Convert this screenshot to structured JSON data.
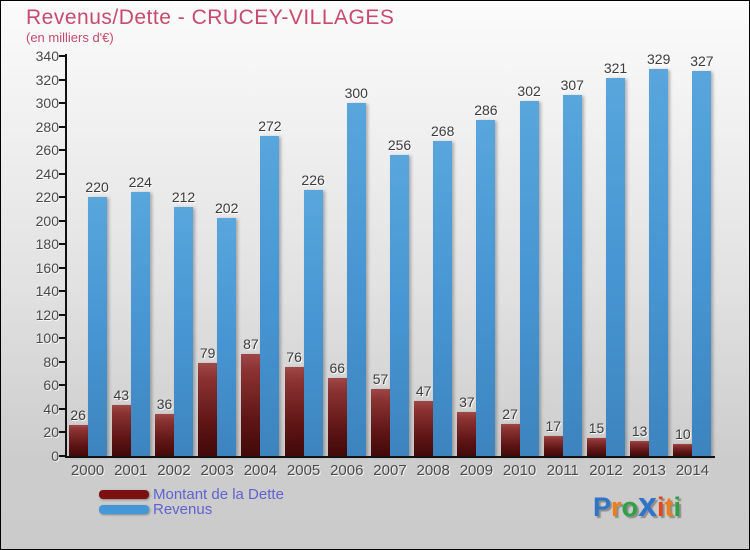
{
  "header": {
    "title": "Revenus/Dette - CRUCEY-VILLAGES",
    "subtitle": "(en milliers d'€)"
  },
  "colors": {
    "title_text": "#c84a6e",
    "axis_text": "#4a4a4a",
    "legend_text": "#6161d1",
    "dette_bar": "#7c1010",
    "revenus_bar": "#4598d8"
  },
  "chart_data": {
    "type": "bar",
    "title": "Revenus/Dette - CRUCEY-VILLAGES",
    "subtitle": "(en milliers d'€)",
    "categories": [
      "2000",
      "2001",
      "2002",
      "2003",
      "2004",
      "2005",
      "2006",
      "2007",
      "2008",
      "2009",
      "2010",
      "2011",
      "2012",
      "2013",
      "2014"
    ],
    "series": [
      {
        "name": "Montant de la Dette",
        "values": [
          26,
          43,
          36,
          79,
          87,
          76,
          66,
          57,
          47,
          37,
          27,
          17,
          15,
          13,
          10
        ]
      },
      {
        "name": "Revenus",
        "values": [
          220,
          224,
          212,
          202,
          272,
          226,
          300,
          256,
          268,
          286,
          302,
          307,
          321,
          329,
          327
        ]
      }
    ],
    "ylim": [
      0,
      340
    ],
    "ytick_step": 20,
    "grid": false,
    "legend_position": "bottom-left",
    "bar_labels": true
  },
  "legend": {
    "items": [
      {
        "label": "Montant de la Dette",
        "color": "#7c1010",
        "series_key": "dette"
      },
      {
        "label": "Revenus",
        "color": "#4598d8",
        "series_key": "revenus"
      }
    ]
  },
  "logo": {
    "name": "Proxiti",
    "letters": [
      {
        "ch": "P",
        "color": "#2e74c8",
        "big": false
      },
      {
        "ch": "r",
        "color": "#f07d18",
        "big": false
      },
      {
        "ch": "o",
        "color": "#2fa043",
        "big": false
      },
      {
        "ch": "x",
        "color": "#2e74c8",
        "big": true
      },
      {
        "ch": "i",
        "color": "#e8431f",
        "big": false
      },
      {
        "ch": "t",
        "color": "#f07d18",
        "big": false
      },
      {
        "ch": "i",
        "color": "#2fa043",
        "big": false
      }
    ]
  }
}
